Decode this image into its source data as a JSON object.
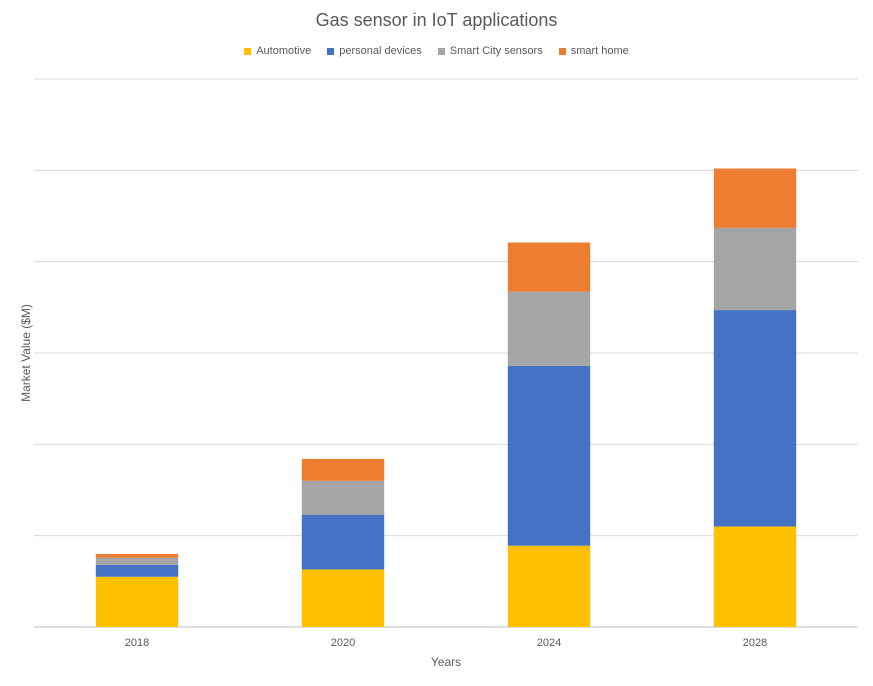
{
  "chart_data": {
    "type": "bar",
    "stacked": true,
    "title": "Gas sensor in IoT applications",
    "xlabel": "Years",
    "ylabel": "Market Value ($M)",
    "categories": [
      "2018",
      "2020",
      "2024",
      "2028"
    ],
    "ylim": [
      0,
      600
    ],
    "y_tick_labels_shown": false,
    "grid": true,
    "legend_position": "top",
    "series": [
      {
        "name": "Automotive",
        "color": "#FFC000",
        "values": [
          55,
          63,
          89,
          110
        ]
      },
      {
        "name": "personal devices",
        "color": "#4472C4",
        "values": [
          13,
          60,
          197,
          237
        ]
      },
      {
        "name": "Smart City sensors",
        "color": "#A5A5A5",
        "values": [
          8,
          37,
          81,
          90
        ]
      },
      {
        "name": "smart home",
        "color": "#ED7D31",
        "values": [
          4,
          24,
          54,
          65
        ]
      }
    ]
  }
}
